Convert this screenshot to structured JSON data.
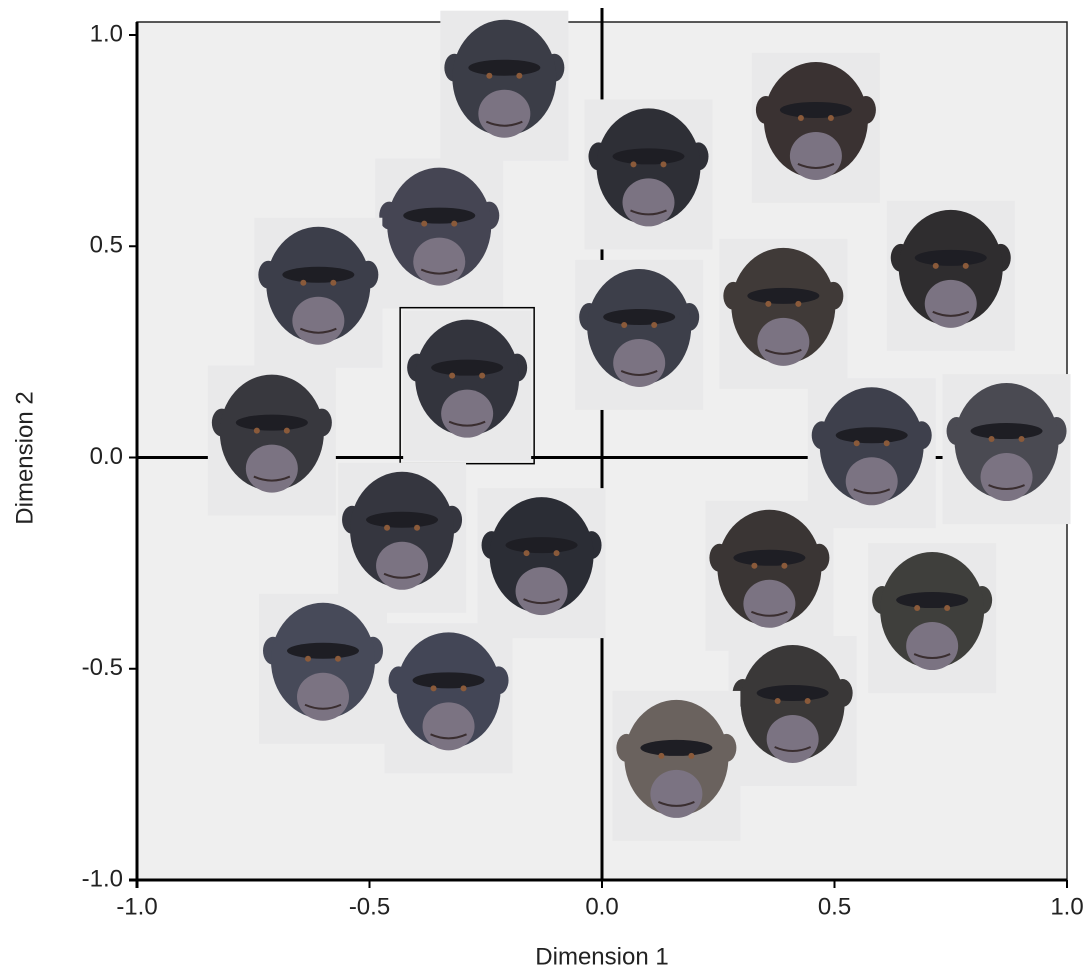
{
  "chart_data": {
    "type": "scatter",
    "xlabel": "Dimension 1",
    "ylabel": "Dimension 2",
    "xlim": [
      -1.0,
      1.0
    ],
    "ylim": [
      -1.0,
      1.0
    ],
    "xticks": [
      {
        "value": -1.0,
        "label": "-1.0"
      },
      {
        "value": -0.5,
        "label": "-0.5"
      },
      {
        "value": 0.0,
        "label": "0.0"
      },
      {
        "value": 0.5,
        "label": "0.5"
      },
      {
        "value": 1.0,
        "label": "1.0"
      }
    ],
    "yticks": [
      {
        "value": -1.0,
        "label": "-1.0"
      },
      {
        "value": -0.5,
        "label": "-0.5"
      },
      {
        "value": 0.0,
        "label": "0.0"
      },
      {
        "value": 0.5,
        "label": "0.5"
      },
      {
        "value": 1.0,
        "label": "1.0"
      }
    ],
    "highlighted_index": 5,
    "x": [
      -0.21,
      0.1,
      0.46,
      -0.35,
      -0.61,
      -0.29,
      0.08,
      0.39,
      0.75,
      -0.71,
      0.58,
      0.87,
      -0.43,
      -0.13,
      0.36,
      0.71,
      -0.6,
      -0.33,
      0.41,
      0.16
    ],
    "values": [
      0.88,
      0.67,
      0.78,
      0.53,
      0.39,
      0.17,
      0.29,
      0.34,
      0.43,
      0.04,
      0.01,
      0.02,
      -0.19,
      -0.25,
      -0.28,
      -0.38,
      -0.5,
      -0.57,
      -0.6,
      -0.73
    ]
  }
}
